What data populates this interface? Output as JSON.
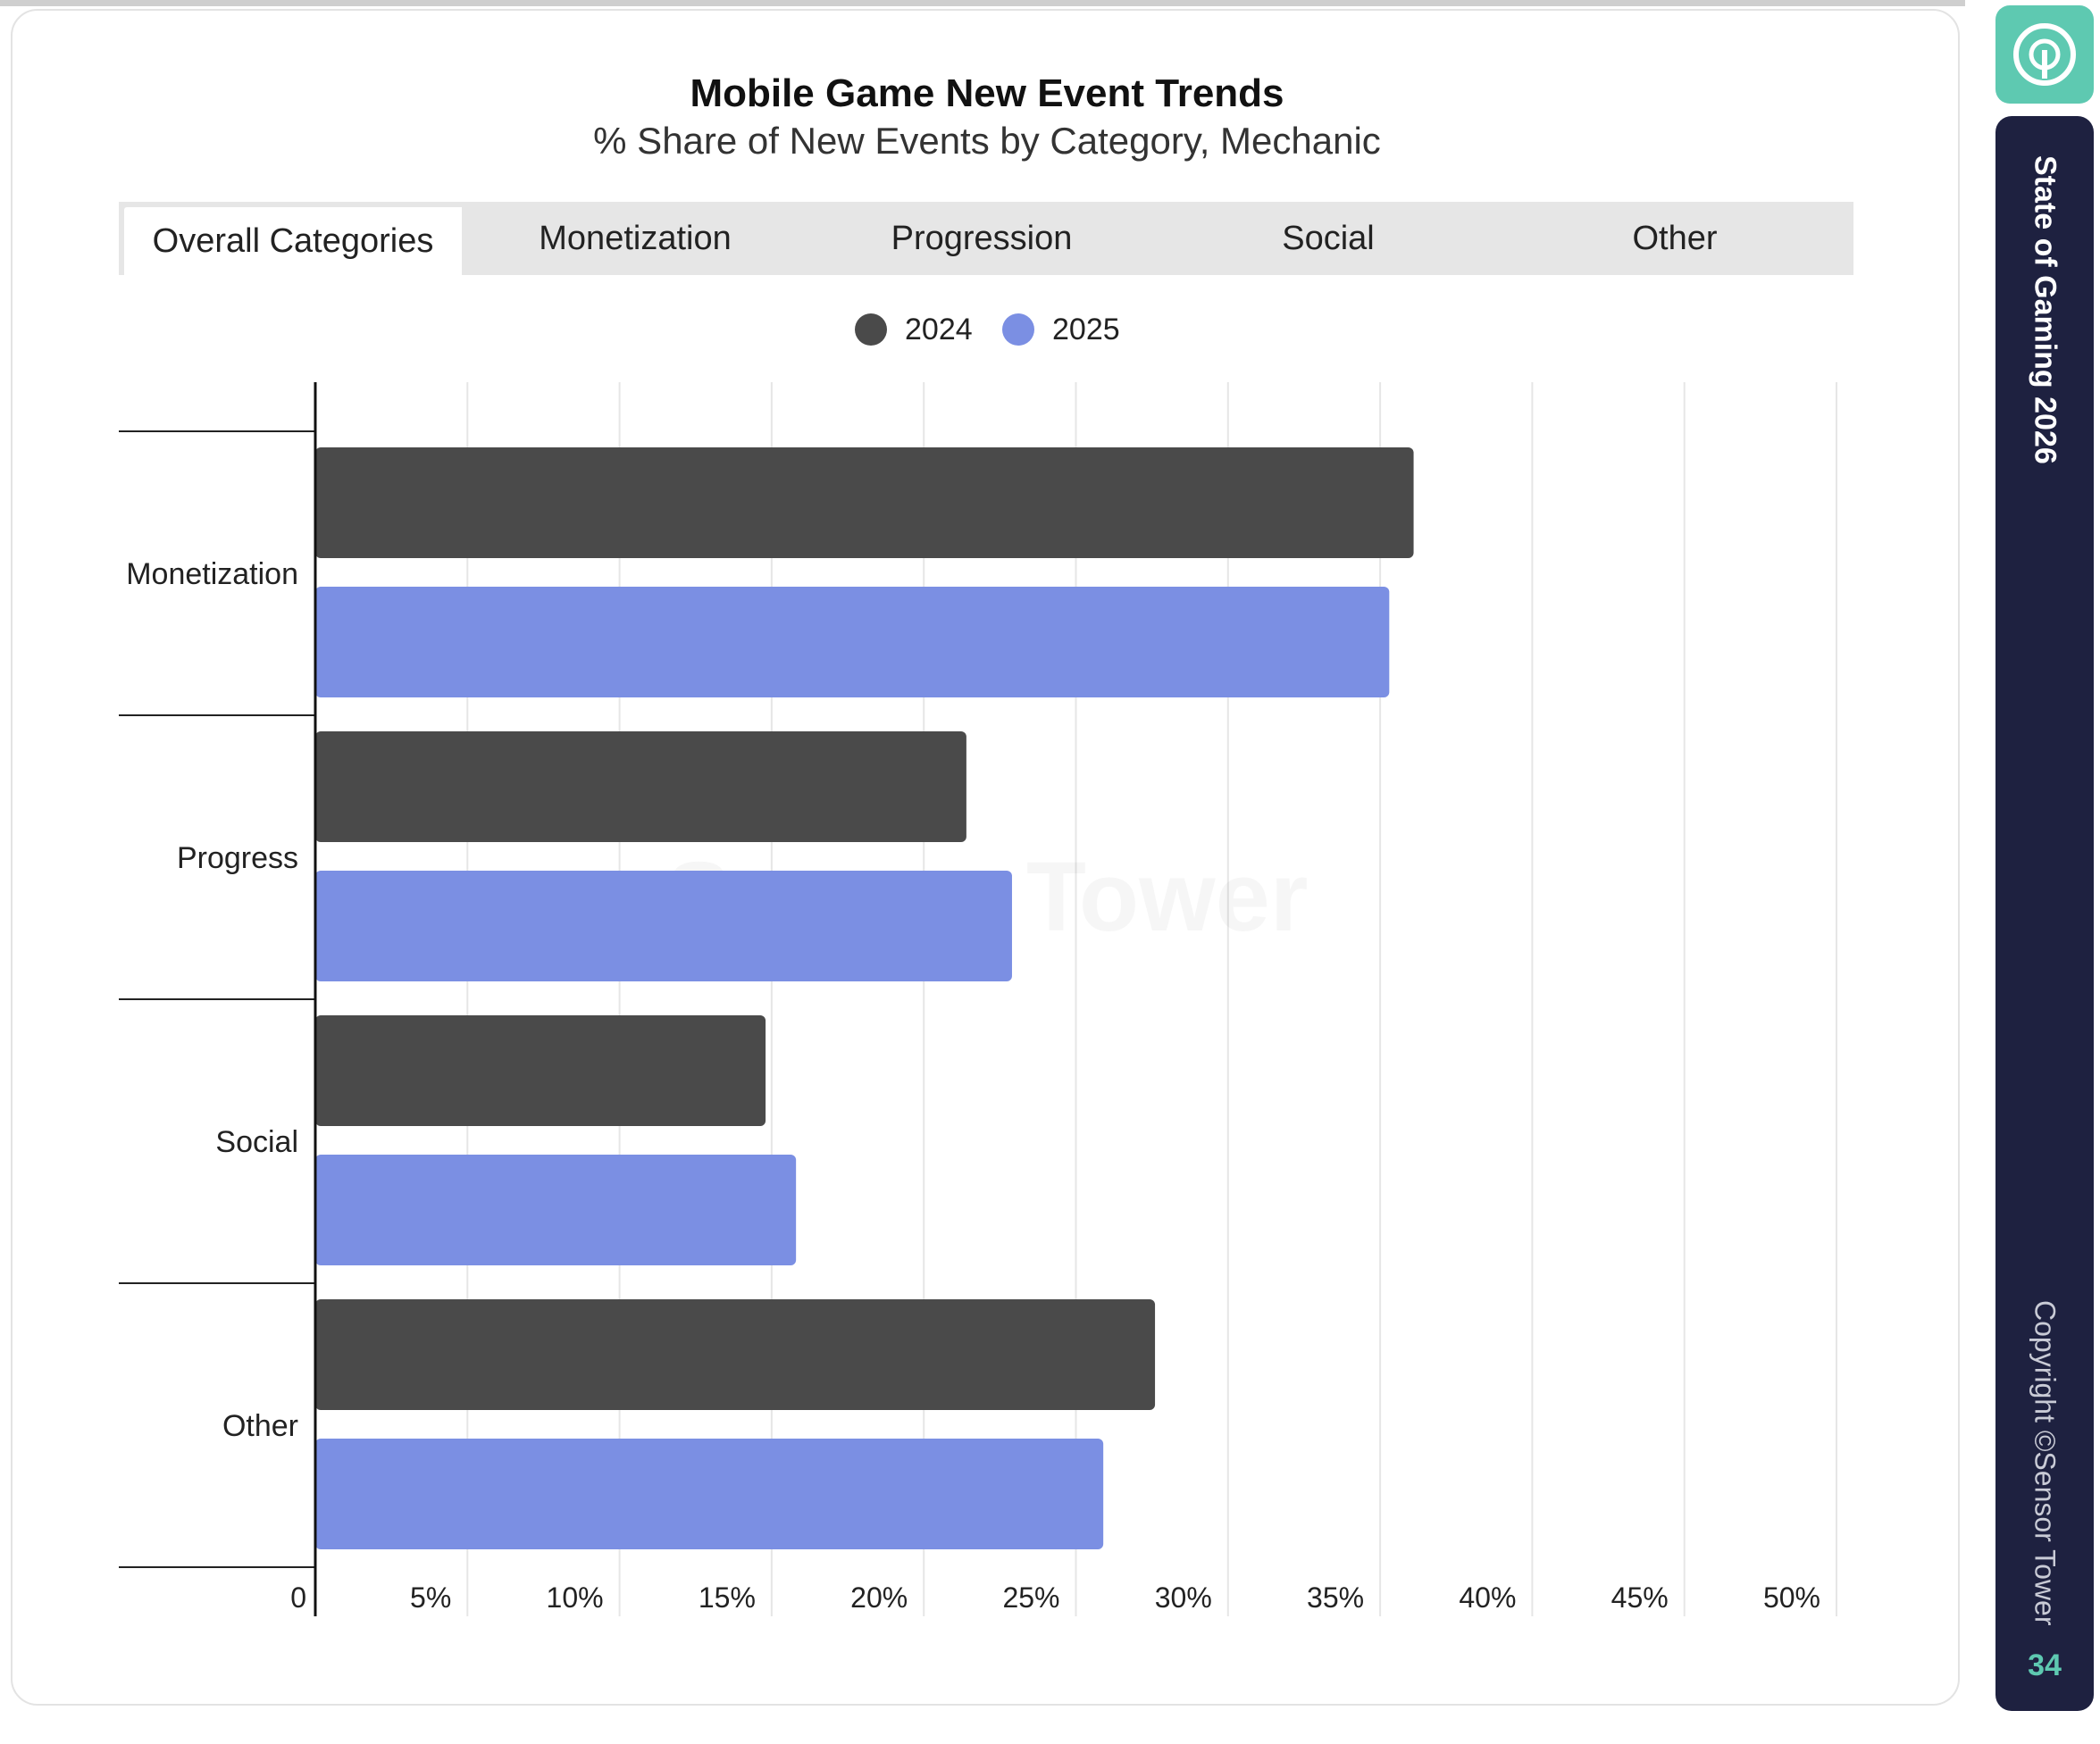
{
  "header": {
    "title": "Mobile Game New Event Trends",
    "subtitle": "% Share of New Events by Category, Mechanic"
  },
  "tabs": [
    {
      "label": "Overall Categories",
      "active": true
    },
    {
      "label": "Monetization",
      "active": false
    },
    {
      "label": "Progression",
      "active": false
    },
    {
      "label": "Social",
      "active": false
    },
    {
      "label": "Other",
      "active": false
    }
  ],
  "sidebar": {
    "title": "State of Gaming 2026",
    "copyright": "Copyright ©Sensor Tower",
    "page_number": "34",
    "logo_icon": "sensor-tower-logo-icon",
    "accent": "#5ec9b1",
    "panel_color": "#1e2140"
  },
  "watermark": "Sensor Tower",
  "chart_data": {
    "type": "bar",
    "orientation": "horizontal",
    "categories": [
      "Monetization",
      "Progress",
      "Social",
      "Other"
    ],
    "series": [
      {
        "name": "2024",
        "color": "#4a4a4a",
        "values": [
          36.1,
          21.4,
          14.8,
          27.6
        ]
      },
      {
        "name": "2025",
        "color": "#7b8fe3",
        "values": [
          35.3,
          22.9,
          15.8,
          25.9
        ]
      }
    ],
    "xlim": [
      0,
      50
    ],
    "xticks": [
      "0",
      "5%",
      "10%",
      "15%",
      "20%",
      "25%",
      "30%",
      "35%",
      "40%",
      "45%",
      "50%"
    ],
    "grid": true,
    "legend": "top-center"
  }
}
